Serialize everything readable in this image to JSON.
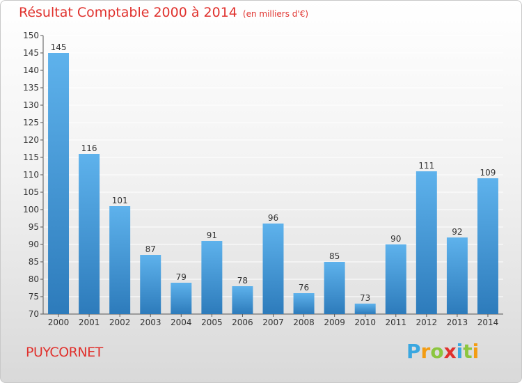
{
  "header": {
    "title": "Résultat Comptable 2000 à 2014",
    "subtitle": "(en milliers d'€)"
  },
  "footer": {
    "place": "PUYCORNET",
    "logo_letters": [
      "P",
      "r",
      "o",
      "x",
      "i",
      "t",
      "i"
    ],
    "logo_colors": [
      "#3aa7e0",
      "#f39c12",
      "#8cc63f",
      "#e0312d",
      "#3aa7e0",
      "#8cc63f",
      "#f39c12"
    ]
  },
  "colors": {
    "title": "#e0312d",
    "bar_light": "#5aaee8",
    "bar_dark": "#2f7fbf",
    "grid": "#ffffff",
    "axis": "#555555"
  },
  "chart_data": {
    "type": "bar",
    "title": "Résultat Comptable 2000 à 2014",
    "subtitle": "(en milliers d'€)",
    "categories": [
      "2000",
      "2001",
      "2002",
      "2003",
      "2004",
      "2005",
      "2006",
      "2007",
      "2008",
      "2009",
      "2010",
      "2011",
      "2012",
      "2013",
      "2014"
    ],
    "values": [
      145,
      116,
      101,
      87,
      79,
      91,
      78,
      96,
      76,
      85,
      73,
      90,
      111,
      92,
      109
    ],
    "ylim": [
      70,
      150
    ],
    "yticks": [
      70,
      75,
      80,
      85,
      90,
      95,
      100,
      105,
      110,
      115,
      120,
      125,
      130,
      135,
      140,
      145,
      150
    ],
    "grid": true,
    "legend": "none"
  }
}
